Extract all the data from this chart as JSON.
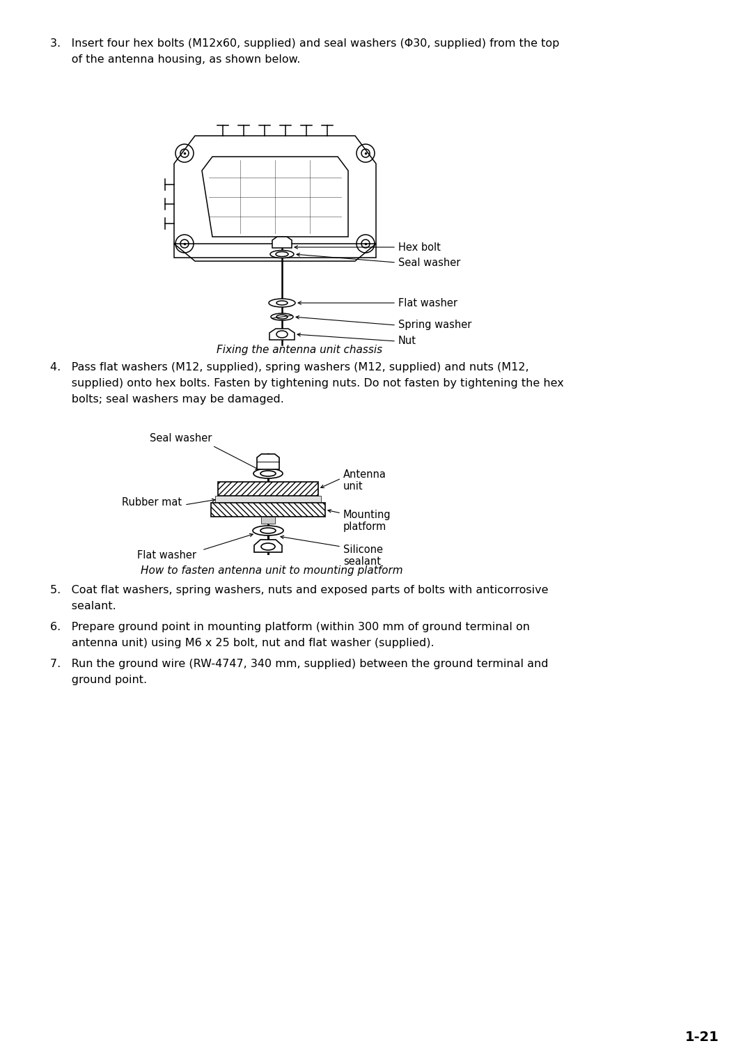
{
  "background_color": "#ffffff",
  "page_number": "1-21",
  "text_color": "#000000",
  "font_size_body": 11.5,
  "font_size_caption": 11.0,
  "font_size_label": 10.5,
  "font_size_page_num": 14,
  "step3_line1": "3.   Insert four hex bolts (M12x60, supplied) and seal washers (Φ30, supplied) from the top",
  "step3_line2": "      of the antenna housing, as shown below.",
  "caption1": "Fixing the antenna unit chassis",
  "step4_line1": "4.   Pass flat washers (M12, supplied), spring washers (M12, supplied) and nuts (M12,",
  "step4_line2": "      supplied) onto hex bolts. Fasten by tightening nuts. Do not fasten by tightening the hex",
  "step4_line3": "      bolts; seal washers may be damaged.",
  "caption2": "How to fasten antenna unit to mounting platform",
  "step5_line1": "5.   Coat flat washers, spring washers, nuts and exposed parts of bolts with anticorrosive",
  "step5_line2": "      sealant.",
  "step6_line1": "6.   Prepare ground point in mounting platform (within 300 mm of ground terminal on",
  "step6_line2": "      antenna unit) using M6 x 25 bolt, nut and flat washer (supplied).",
  "step7_line1": "7.   Run the ground wire (RW-4747, 340 mm, supplied) between the ground terminal and",
  "step7_line2": "      ground point.",
  "d1_hex_bolt": "Hex bolt",
  "d1_seal_washer": "Seal washer",
  "d1_flat_washer": "Flat washer",
  "d1_spring_washer": "Spring washer",
  "d1_nut": "Nut",
  "d2_seal_washer": "Seal washer",
  "d2_rubber_mat": "Rubber mat",
  "d2_flat_washer": "Flat washer",
  "d2_antenna_unit": "Antenna\nunit",
  "d2_mounting_platform": "Mounting\nplatform",
  "d2_silicone_sealant": "Silicone\nsealant"
}
